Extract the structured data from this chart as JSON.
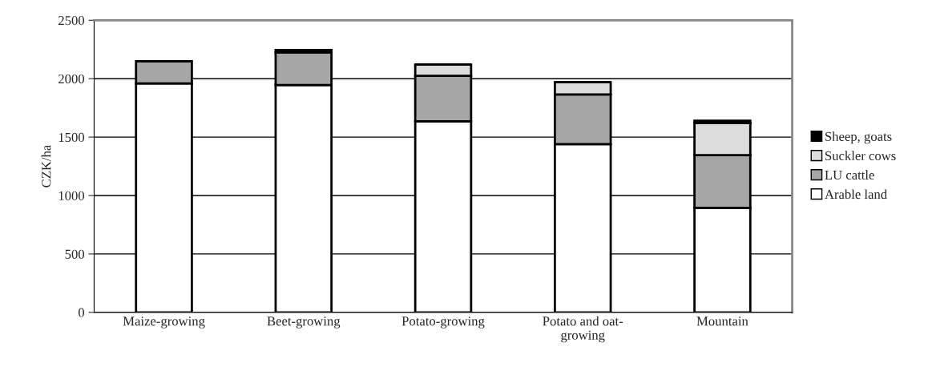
{
  "chart_data": {
    "type": "bar",
    "stacked": true,
    "ylabel": "CZK/ha",
    "categories": [
      "Maize-growing",
      "Beet-growing",
      "Potato-growing",
      "Potato and oat-\ngrowing",
      "Mountain"
    ],
    "series": [
      {
        "name": "Arable land",
        "color": "#ffffff",
        "values": [
          1960,
          1945,
          1635,
          1440,
          895
        ]
      },
      {
        "name": "LU cattle",
        "color": "#a6a6a6",
        "values": [
          190,
          280,
          390,
          425,
          450
        ]
      },
      {
        "name": "Suckler cows",
        "color": "#dcdcdc",
        "values": [
          0,
          0,
          95,
          105,
          275
        ]
      },
      {
        "name": "Sheep, goats",
        "color": "#000000",
        "values": [
          0,
          20,
          0,
          0,
          20
        ]
      }
    ],
    "ylim": [
      0,
      2500
    ],
    "yticks": [
      0,
      500,
      1000,
      1500,
      2000,
      2500
    ],
    "grid": "y",
    "legend": "right"
  }
}
